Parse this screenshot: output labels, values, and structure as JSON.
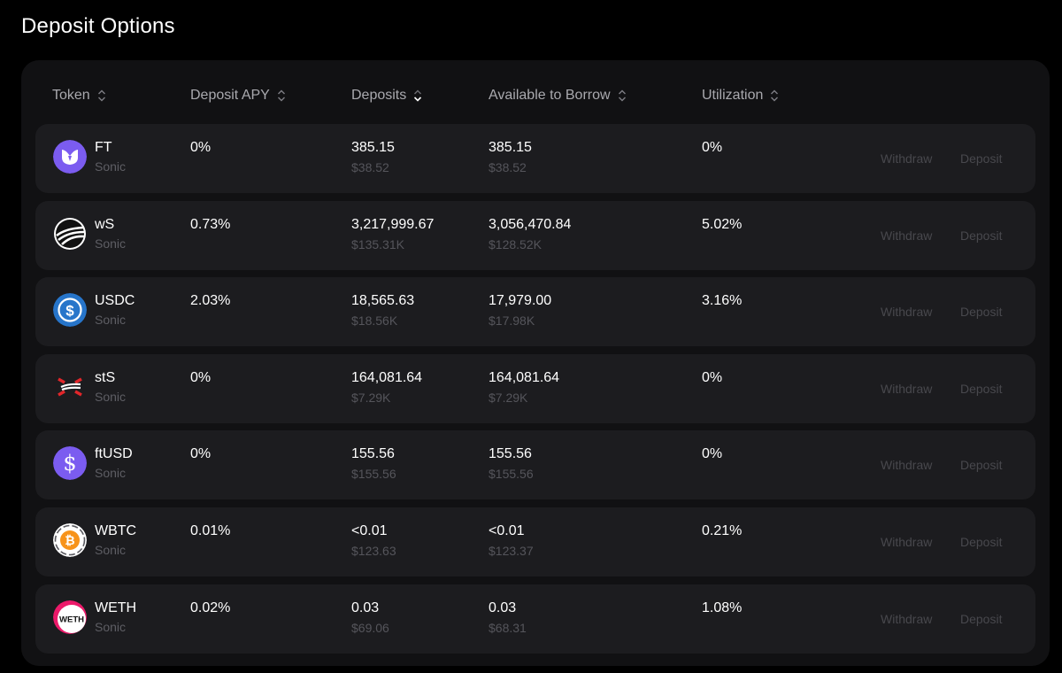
{
  "page_title": "Deposit Options",
  "columns": {
    "token": "Token",
    "deposit_apy": "Deposit APY",
    "deposits": "Deposits",
    "available": "Available to Borrow",
    "utilization": "Utilization"
  },
  "actions": {
    "withdraw": "Withdraw",
    "deposit": "Deposit"
  },
  "rows": [
    {
      "symbol": "FT",
      "network": "Sonic",
      "apy": "0%",
      "deposits": "385.15",
      "deposits_usd": "$38.52",
      "available": "385.15",
      "available_usd": "$38.52",
      "utilization": "0%",
      "icon": "ft-icon",
      "color": "#7b5cf0"
    },
    {
      "symbol": "wS",
      "network": "Sonic",
      "apy": "0.73%",
      "deposits": "3,217,999.67",
      "deposits_usd": "$135.31K",
      "available": "3,056,470.84",
      "available_usd": "$128.52K",
      "utilization": "5.02%",
      "icon": "ws-icon",
      "color": "#ffffff"
    },
    {
      "symbol": "USDC",
      "network": "Sonic",
      "apy": "2.03%",
      "deposits": "18,565.63",
      "deposits_usd": "$18.56K",
      "available": "17,979.00",
      "available_usd": "$17.98K",
      "utilization": "3.16%",
      "icon": "usdc-icon",
      "color": "#2775ca"
    },
    {
      "symbol": "stS",
      "network": "Sonic",
      "apy": "0%",
      "deposits": "164,081.64",
      "deposits_usd": "$7.29K",
      "available": "164,081.64",
      "available_usd": "$7.29K",
      "utilization": "0%",
      "icon": "sts-icon",
      "color": "#e2262a"
    },
    {
      "symbol": "ftUSD",
      "network": "Sonic",
      "apy": "0%",
      "deposits": "155.56",
      "deposits_usd": "$155.56",
      "available": "155.56",
      "available_usd": "$155.56",
      "utilization": "0%",
      "icon": "ftusd-icon",
      "color": "#7b5cf0"
    },
    {
      "symbol": "WBTC",
      "network": "Sonic",
      "apy": "0.01%",
      "deposits": "<0.01",
      "deposits_usd": "$123.63",
      "available": "<0.01",
      "available_usd": "$123.37",
      "utilization": "0.21%",
      "icon": "wbtc-icon",
      "color": "#f7931a"
    },
    {
      "symbol": "WETH",
      "network": "Sonic",
      "apy": "0.02%",
      "deposits": "0.03",
      "deposits_usd": "$69.06",
      "available": "0.03",
      "available_usd": "$68.31",
      "utilization": "1.08%",
      "icon": "weth-icon",
      "color": "#ec1a6a",
      "icon_text": "WETH"
    }
  ]
}
